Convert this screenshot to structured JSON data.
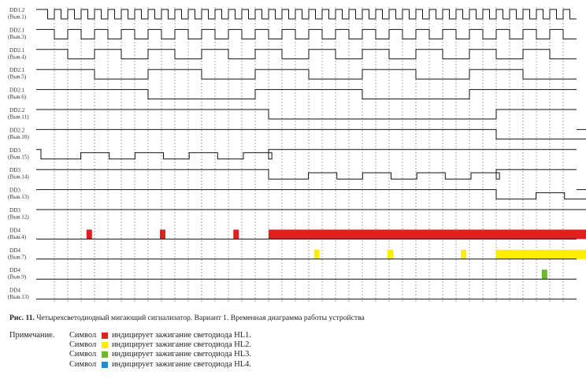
{
  "signals": [
    {
      "name": "DD1.2",
      "pin": "(Выв.1)"
    },
    {
      "name": "DD2.1",
      "pin": "(Выв.3)"
    },
    {
      "name": "DD2.1",
      "pin": "(Выв.4)"
    },
    {
      "name": "DD2.1",
      "pin": "(Выв.5)"
    },
    {
      "name": "DD2.1",
      "pin": "(Выв.6)"
    },
    {
      "name": "DD2.2",
      "pin": "(Выв.11)"
    },
    {
      "name": "DD2.2",
      "pin": "(Выв.10)"
    },
    {
      "name": "DD3",
      "pin": "(Выв.15)"
    },
    {
      "name": "DD3",
      "pin": "(Выв.14)"
    },
    {
      "name": "DD3",
      "pin": "(Выв.13)"
    },
    {
      "name": "DD3",
      "pin": "(Выв.12)"
    },
    {
      "name": "DD4",
      "pin": "(Выв.4)"
    },
    {
      "name": "DD4",
      "pin": "(Выв.7)"
    },
    {
      "name": "DD4",
      "pin": "(Выв.9)"
    },
    {
      "name": "DD4",
      "pin": "(Выв.13)"
    }
  ],
  "caption": {
    "label": "Рис. 11.",
    "text": "Четырехсветодиодный мигающий сигнализатор. Вариант 1. Временная диаграмма работы устройства"
  },
  "note": {
    "heading": "Примечание.",
    "items": [
      {
        "prefix": "Символ",
        "color": "#e02020",
        "text": "индицирует зажигание светодиода HL1."
      },
      {
        "prefix": "Символ",
        "color": "#ffee00",
        "text": "индицирует зажигание светодиода HL2."
      },
      {
        "prefix": "Символ",
        "color": "#6cb82c",
        "text": "индицирует зажигание светодиода HL3."
      },
      {
        "prefix": "Символ",
        "color": "#1a8fd6",
        "text": "индицирует зажигание светодиода HL4."
      }
    ]
  }
}
